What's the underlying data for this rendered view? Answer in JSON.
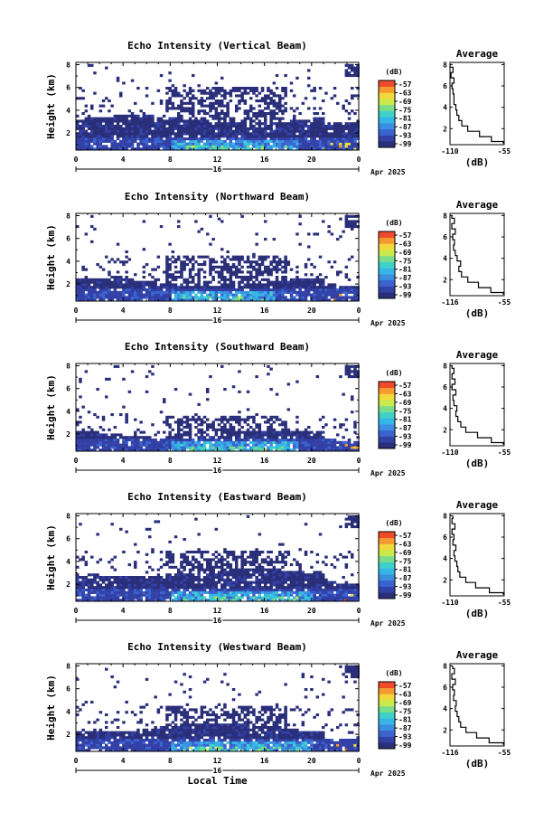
{
  "chart_data": [
    {
      "type": "heatmap",
      "title": "Echo Intensity (Vertical Beam)",
      "ylabel": "Height (km)",
      "xlabel": "",
      "x_ticks": [
        "0",
        "4",
        "8",
        "12",
        "16",
        "20",
        "0"
      ],
      "y_ticks": [
        "2",
        "4",
        "6",
        "8"
      ],
      "date_day": "16",
      "date_month": "Apr 2025",
      "xlim": [
        0,
        24
      ],
      "ylim": [
        0.5,
        8.2
      ],
      "colorbar": {
        "label": "(dB)",
        "ticks": [
          "-57",
          "-63",
          "-69",
          "-75",
          "-81",
          "-87",
          "-93",
          "-99"
        ]
      },
      "echo_layer": {
        "low_top_km": 3.2,
        "scatter_top_km": 6.0,
        "enhanced_hours": [
          8,
          19
        ]
      },
      "profile": {
        "title": "Average",
        "xlabel": "(dB)",
        "x_ticks": [
          "-110",
          "-55"
        ],
        "y_ticks": [
          "2",
          "4",
          "6",
          "8"
        ],
        "xlim": [
          -110,
          -55
        ],
        "ylim": [
          0.5,
          8.2
        ],
        "height_km": [
          0.6,
          1.0,
          1.5,
          2.0,
          2.5,
          3.0,
          3.5,
          4.0,
          4.5,
          5.0,
          5.5,
          6.0,
          6.5,
          7.0,
          7.5,
          8.0
        ],
        "values_db": [
          -56,
          -68,
          -80,
          -92,
          -98,
          -101,
          -103,
          -104,
          -106,
          -106,
          -107,
          -108,
          -106,
          -109,
          -107,
          -110
        ]
      }
    },
    {
      "type": "heatmap",
      "title": "Echo Intensity (Northward Beam)",
      "ylabel": "Height (km)",
      "xlabel": "",
      "x_ticks": [
        "0",
        "4",
        "8",
        "12",
        "16",
        "20",
        "0"
      ],
      "y_ticks": [
        "2",
        "4",
        "6",
        "8"
      ],
      "date_day": "16",
      "date_month": "Apr 2025",
      "xlim": [
        0,
        24
      ],
      "ylim": [
        0.5,
        8.2
      ],
      "colorbar": {
        "label": "(dB)",
        "ticks": [
          "-57",
          "-63",
          "-69",
          "-75",
          "-81",
          "-87",
          "-93",
          "-99"
        ]
      },
      "echo_layer": {
        "low_top_km": 2.2,
        "scatter_top_km": 4.6,
        "enhanced_hours": [
          8,
          17
        ]
      },
      "profile": {
        "title": "Average",
        "xlabel": "(dB)",
        "x_ticks": [
          "-116",
          "-55"
        ],
        "y_ticks": [
          "2",
          "4",
          "6",
          "8"
        ],
        "xlim": [
          -116,
          -55
        ],
        "ylim": [
          0.5,
          8.2
        ],
        "height_km": [
          0.6,
          1.0,
          1.5,
          2.0,
          2.5,
          3.0,
          3.5,
          4.0,
          4.5,
          5.0,
          5.5,
          6.0,
          6.5,
          7.0,
          7.5,
          8.0
        ],
        "values_db": [
          -56,
          -70,
          -84,
          -96,
          -103,
          -106,
          -104,
          -108,
          -110,
          -112,
          -111,
          -113,
          -110,
          -114,
          -111,
          -114
        ]
      }
    },
    {
      "type": "heatmap",
      "title": "Echo Intensity (Southward Beam)",
      "ylabel": "Height (km)",
      "xlabel": "",
      "x_ticks": [
        "0",
        "4",
        "8",
        "12",
        "16",
        "20",
        "0"
      ],
      "y_ticks": [
        "2",
        "4",
        "6",
        "8"
      ],
      "date_day": "16",
      "date_month": "Apr 2025",
      "xlim": [
        0,
        24
      ],
      "ylim": [
        0.5,
        8.2
      ],
      "colorbar": {
        "label": "(dB)",
        "ticks": [
          "-57",
          "-63",
          "-69",
          "-75",
          "-81",
          "-87",
          "-93",
          "-99"
        ]
      },
      "echo_layer": {
        "low_top_km": 2.0,
        "scatter_top_km": 3.6,
        "enhanced_hours": [
          8,
          19
        ]
      },
      "profile": {
        "title": "Average",
        "xlabel": "(dB)",
        "x_ticks": [
          "-110",
          "-55"
        ],
        "y_ticks": [
          "2",
          "4",
          "6",
          "8"
        ],
        "xlim": [
          -110,
          -55
        ],
        "ylim": [
          0.5,
          8.2
        ],
        "height_km": [
          0.6,
          1.0,
          1.5,
          2.0,
          2.5,
          3.0,
          3.5,
          4.0,
          4.5,
          5.0,
          5.5,
          6.0,
          6.5,
          7.0,
          7.5,
          8.0
        ],
        "values_db": [
          -56,
          -68,
          -82,
          -94,
          -99,
          -102,
          -104,
          -103,
          -106,
          -107,
          -104,
          -108,
          -105,
          -108,
          -106,
          -108
        ]
      }
    },
    {
      "type": "heatmap",
      "title": "Echo Intensity (Eastward Beam)",
      "ylabel": "Height (km)",
      "xlabel": "",
      "x_ticks": [
        "0",
        "4",
        "8",
        "12",
        "16",
        "20",
        "0"
      ],
      "y_ticks": [
        "2",
        "4",
        "6",
        "8"
      ],
      "date_day": "16",
      "date_month": "Apr 2025",
      "xlim": [
        0,
        24
      ],
      "ylim": [
        0.5,
        8.2
      ],
      "colorbar": {
        "label": "(dB)",
        "ticks": [
          "-57",
          "-63",
          "-69",
          "-75",
          "-81",
          "-87",
          "-93",
          "-99"
        ]
      },
      "echo_layer": {
        "low_top_km": 3.0,
        "scatter_top_km": 5.0,
        "enhanced_hours": [
          8,
          20
        ]
      },
      "profile": {
        "title": "Average",
        "xlabel": "(dB)",
        "x_ticks": [
          "-110",
          "-55"
        ],
        "y_ticks": [
          "2",
          "4",
          "6",
          "8"
        ],
        "xlim": [
          -110,
          -55
        ],
        "ylim": [
          0.5,
          8.2
        ],
        "height_km": [
          0.6,
          1.0,
          1.5,
          2.0,
          2.5,
          3.0,
          3.5,
          4.0,
          4.5,
          5.0,
          5.5,
          6.0,
          6.5,
          7.0,
          7.5,
          8.0
        ],
        "values_db": [
          -56,
          -70,
          -84,
          -94,
          -100,
          -102,
          -103,
          -105,
          -106,
          -104,
          -107,
          -106,
          -108,
          -105,
          -108,
          -107
        ]
      }
    },
    {
      "type": "heatmap",
      "title": "Echo Intensity (Westward Beam)",
      "ylabel": "Height (km)",
      "xlabel": "Local Time",
      "x_ticks": [
        "0",
        "4",
        "8",
        "12",
        "16",
        "20",
        "0"
      ],
      "y_ticks": [
        "2",
        "4",
        "6",
        "8"
      ],
      "date_day": "16",
      "date_month": "Apr 2025",
      "xlim": [
        0,
        24
      ],
      "ylim": [
        0.5,
        8.2
      ],
      "colorbar": {
        "label": "(dB)",
        "ticks": [
          "-57",
          "-63",
          "-69",
          "-75",
          "-81",
          "-87",
          "-93",
          "-99"
        ]
      },
      "echo_layer": {
        "low_top_km": 2.6,
        "scatter_top_km": 4.6,
        "enhanced_hours": [
          8,
          20
        ]
      },
      "profile": {
        "title": "Average",
        "xlabel": "(dB)",
        "x_ticks": [
          "-116",
          "-55"
        ],
        "y_ticks": [
          "2",
          "4",
          "6",
          "8"
        ],
        "xlim": [
          -116,
          -55
        ],
        "ylim": [
          0.5,
          8.2
        ],
        "height_km": [
          0.6,
          1.0,
          1.5,
          2.0,
          2.5,
          3.0,
          3.5,
          4.0,
          4.5,
          5.0,
          5.5,
          6.0,
          6.5,
          7.0,
          7.5,
          8.0
        ],
        "values_db": [
          -56,
          -72,
          -86,
          -98,
          -104,
          -106,
          -108,
          -110,
          -109,
          -112,
          -111,
          -113,
          -110,
          -114,
          -111,
          -113
        ]
      }
    }
  ]
}
